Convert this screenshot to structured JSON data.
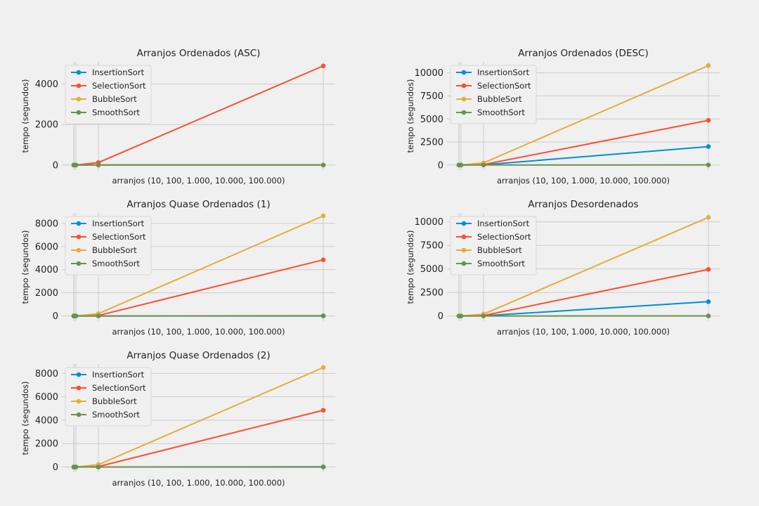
{
  "colors": {
    "background": "#f0f0f0",
    "grid": "#cbcbcb",
    "text": "#222222",
    "series": [
      "#008fd5",
      "#fc4f30",
      "#e5ae38",
      "#6d904f"
    ]
  },
  "chart_data": [
    {
      "type": "line",
      "title": "Arranjos Ordenados (ASC)",
      "xlabel": "arranjos (10, 100, 1.000, 10.000, 100.000)",
      "ylabel": "tempo (segundos)",
      "x": [
        10,
        100,
        1000,
        10000,
        100000
      ],
      "ylim": [
        -250,
        5100
      ],
      "yticks": [
        0,
        2000,
        4000
      ],
      "ytick_labels": [
        "0",
        "2000",
        "4000"
      ],
      "legend_position": "upper-left",
      "series": [
        {
          "name": "InsertionSort",
          "values": [
            0,
            0,
            0,
            0,
            0
          ]
        },
        {
          "name": "SelectionSort",
          "values": [
            0,
            0,
            0,
            120,
            4900
          ]
        },
        {
          "name": "BubbleSort",
          "values": [
            0,
            0,
            0,
            0,
            0
          ]
        },
        {
          "name": "SmoothSort",
          "values": [
            0,
            0,
            0,
            0,
            0
          ]
        }
      ]
    },
    {
      "type": "line",
      "title": "Arranjos Ordenados (DESC)",
      "xlabel": "arranjos (10, 100, 1.000, 10.000, 100.000)",
      "ylabel": "tempo (segundos)",
      "x": [
        10,
        100,
        1000,
        10000,
        100000
      ],
      "ylim": [
        -550,
        11200
      ],
      "yticks": [
        0,
        2500,
        5000,
        7500,
        10000
      ],
      "ytick_labels": [
        "0",
        "2500",
        "5000",
        "7500",
        "10000"
      ],
      "legend_position": "upper-left",
      "series": [
        {
          "name": "InsertionSort",
          "values": [
            0,
            0,
            0,
            20,
            2000
          ]
        },
        {
          "name": "SelectionSort",
          "values": [
            0,
            0,
            0,
            50,
            4850
          ]
        },
        {
          "name": "BubbleSort",
          "values": [
            0,
            0,
            0,
            230,
            10800
          ]
        },
        {
          "name": "SmoothSort",
          "values": [
            0,
            0,
            0,
            0,
            10
          ]
        }
      ]
    },
    {
      "type": "line",
      "title": "Arranjos Quase Ordenados (1)",
      "xlabel": "arranjos (10, 100, 1.000, 10.000, 100.000)",
      "ylabel": "tempo (segundos)",
      "x": [
        10,
        100,
        1000,
        10000,
        100000
      ],
      "ylim": [
        -450,
        8900
      ],
      "yticks": [
        0,
        2000,
        4000,
        6000,
        8000
      ],
      "ytick_labels": [
        "0",
        "2000",
        "4000",
        "6000",
        "8000"
      ],
      "legend_position": "upper-left",
      "series": [
        {
          "name": "InsertionSort",
          "values": [
            0,
            0,
            0,
            0,
            0
          ]
        },
        {
          "name": "SelectionSort",
          "values": [
            0,
            0,
            0,
            40,
            4850
          ]
        },
        {
          "name": "BubbleSort",
          "values": [
            0,
            0,
            0,
            200,
            8650
          ]
        },
        {
          "name": "SmoothSort",
          "values": [
            0,
            0,
            0,
            0,
            20
          ]
        }
      ]
    },
    {
      "type": "line",
      "title": "Arranjos Desordenados",
      "xlabel": "arranjos (10, 100, 1.000, 10.000, 100.000)",
      "ylabel": "tempo (segundos)",
      "x": [
        10,
        100,
        1000,
        10000,
        100000
      ],
      "ylim": [
        -550,
        10950
      ],
      "yticks": [
        0,
        2500,
        5000,
        7500,
        10000
      ],
      "ytick_labels": [
        "0",
        "2500",
        "5000",
        "7500",
        "10000"
      ],
      "legend_position": "upper-left",
      "series": [
        {
          "name": "InsertionSort",
          "values": [
            0,
            0,
            0,
            20,
            1520
          ]
        },
        {
          "name": "SelectionSort",
          "values": [
            0,
            0,
            0,
            50,
            4950
          ]
        },
        {
          "name": "BubbleSort",
          "values": [
            0,
            0,
            0,
            200,
            10480
          ]
        },
        {
          "name": "SmoothSort",
          "values": [
            0,
            0,
            0,
            0,
            10
          ]
        }
      ]
    },
    {
      "type": "line",
      "title": "Arranjos Quase Ordenados (2)",
      "xlabel": "arranjos (10, 100, 1.000, 10.000, 100.000)",
      "ylabel": "tempo (segundos)",
      "x": [
        10,
        100,
        1000,
        10000,
        100000
      ],
      "ylim": [
        -450,
        8800
      ],
      "yticks": [
        0,
        2000,
        4000,
        6000,
        8000
      ],
      "ytick_labels": [
        "0",
        "2000",
        "4000",
        "6000",
        "8000"
      ],
      "legend_position": "upper-left",
      "series": [
        {
          "name": "InsertionSort",
          "values": [
            0,
            0,
            0,
            0,
            0
          ]
        },
        {
          "name": "SelectionSort",
          "values": [
            0,
            0,
            0,
            40,
            4850
          ]
        },
        {
          "name": "BubbleSort",
          "values": [
            0,
            0,
            0,
            200,
            8500
          ]
        },
        {
          "name": "SmoothSort",
          "values": [
            0,
            0,
            0,
            0,
            20
          ]
        }
      ]
    }
  ]
}
